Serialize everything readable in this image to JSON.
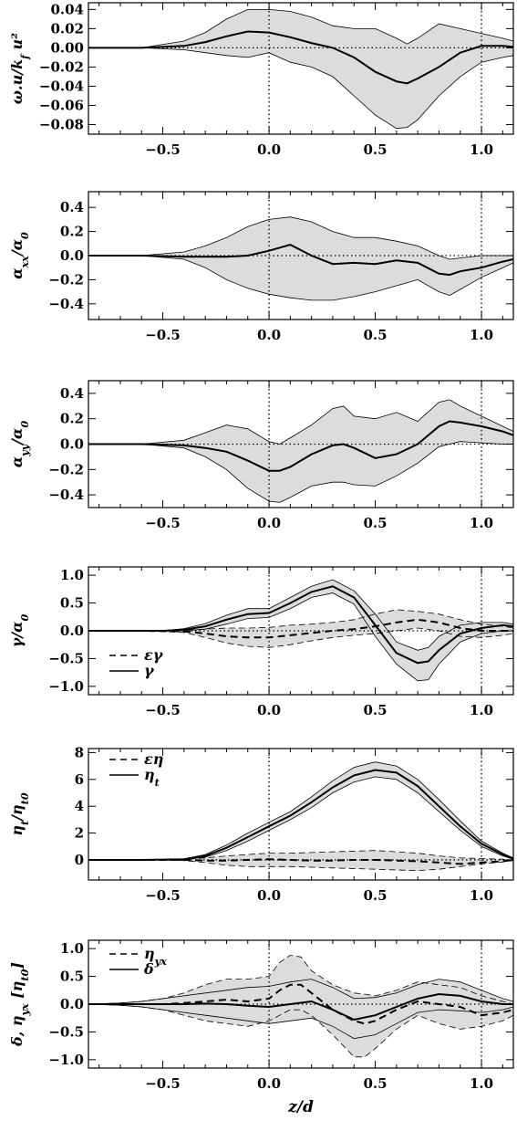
{
  "chart_data": [
    {
      "type": "area",
      "ylabel": "ω.u/k_f u²",
      "x_ticks": [
        -0.5,
        0.0,
        0.5,
        1.0
      ],
      "x_tick_labels": [
        "−0.5",
        "0.0",
        "0.5",
        "1.0"
      ],
      "y_ticks": [
        0.04,
        0.02,
        0.0,
        -0.02,
        -0.04,
        -0.06,
        -0.08
      ],
      "y_tick_labels": [
        "0.04",
        "0.02",
        "0.00",
        "−0.02",
        "−0.04",
        "−0.06",
        "−0.08"
      ],
      "xlim": [
        -0.85,
        1.15
      ],
      "ylim": [
        -0.09,
        0.047
      ],
      "vlines": [
        0.0,
        1.0
      ],
      "hline": 0,
      "legend": [],
      "series": [
        {
          "style": "solid",
          "x": [
            -0.85,
            -0.6,
            -0.4,
            -0.3,
            -0.2,
            -0.1,
            0.0,
            0.1,
            0.2,
            0.3,
            0.4,
            0.5,
            0.6,
            0.65,
            0.7,
            0.8,
            0.9,
            1.0,
            1.1,
            1.15
          ],
          "y": [
            0.0,
            0.0,
            0.002,
            0.006,
            0.012,
            0.017,
            0.016,
            0.011,
            0.005,
            0.0,
            -0.01,
            -0.025,
            -0.035,
            -0.037,
            -0.032,
            -0.02,
            -0.005,
            0.002,
            0.002,
            0.001
          ],
          "lo": [
            0.0,
            0.0,
            -0.002,
            -0.005,
            -0.008,
            -0.01,
            -0.005,
            -0.015,
            -0.02,
            -0.03,
            -0.05,
            -0.07,
            -0.084,
            -0.083,
            -0.075,
            -0.05,
            -0.03,
            -0.015,
            -0.01,
            -0.008
          ],
          "hi": [
            0.0,
            0.0,
            0.007,
            0.016,
            0.03,
            0.04,
            0.04,
            0.038,
            0.032,
            0.023,
            0.02,
            0.02,
            0.01,
            0.004,
            0.01,
            0.025,
            0.02,
            0.015,
            0.01,
            0.007
          ]
        }
      ]
    },
    {
      "type": "area",
      "ylabel": "α_xx/α_0",
      "x_ticks": [
        -0.5,
        0.0,
        0.5,
        1.0
      ],
      "x_tick_labels": [
        "−0.5",
        "0.0",
        "0.5",
        "1.0"
      ],
      "y_ticks": [
        0.4,
        0.2,
        0.0,
        -0.2,
        -0.4
      ],
      "y_tick_labels": [
        "0.4",
        "0.2",
        "0.0",
        "−0.2",
        "−0.4"
      ],
      "xlim": [
        -0.85,
        1.15
      ],
      "ylim": [
        -0.53,
        0.53
      ],
      "vlines": [
        0.0,
        1.0
      ],
      "hline": 0,
      "legend": [],
      "series": [
        {
          "style": "solid",
          "x": [
            -0.85,
            -0.6,
            -0.4,
            -0.3,
            -0.2,
            -0.1,
            0.0,
            0.1,
            0.2,
            0.3,
            0.4,
            0.5,
            0.6,
            0.7,
            0.8,
            0.85,
            0.9,
            1.0,
            1.1,
            1.15
          ],
          "y": [
            0.0,
            0.0,
            -0.01,
            -0.01,
            -0.01,
            0.0,
            0.04,
            0.09,
            0.0,
            -0.07,
            -0.06,
            -0.07,
            -0.04,
            -0.06,
            -0.15,
            -0.16,
            -0.13,
            -0.1,
            -0.05,
            -0.03
          ],
          "lo": [
            0.0,
            0.0,
            -0.03,
            -0.1,
            -0.2,
            -0.27,
            -0.32,
            -0.35,
            -0.37,
            -0.37,
            -0.34,
            -0.3,
            -0.25,
            -0.2,
            -0.3,
            -0.33,
            -0.28,
            -0.18,
            -0.1,
            -0.06
          ],
          "hi": [
            0.0,
            0.0,
            0.03,
            0.08,
            0.15,
            0.24,
            0.3,
            0.32,
            0.28,
            0.2,
            0.15,
            0.15,
            0.12,
            0.08,
            0.0,
            -0.03,
            -0.02,
            0.0,
            0.0,
            0.0
          ]
        }
      ]
    },
    {
      "type": "area",
      "ylabel": "α_yy/α_0",
      "x_ticks": [
        -0.5,
        0.0,
        0.5,
        1.0
      ],
      "x_tick_labels": [
        "−0.5",
        "0.0",
        "0.5",
        "1.0"
      ],
      "y_ticks": [
        0.4,
        0.2,
        0.0,
        -0.2,
        -0.4
      ],
      "y_tick_labels": [
        "0.4",
        "0.2",
        "0.0",
        "−0.2",
        "−0.4"
      ],
      "xlim": [
        -0.85,
        1.15
      ],
      "ylim": [
        -0.5,
        0.5
      ],
      "vlines": [
        0.0,
        1.0
      ],
      "hline": 0,
      "legend": [],
      "series": [
        {
          "style": "solid",
          "x": [
            -0.85,
            -0.6,
            -0.4,
            -0.3,
            -0.2,
            -0.1,
            0.0,
            0.05,
            0.1,
            0.2,
            0.3,
            0.35,
            0.4,
            0.5,
            0.6,
            0.7,
            0.8,
            0.85,
            0.9,
            1.0,
            1.1,
            1.15
          ],
          "y": [
            0.0,
            0.0,
            -0.01,
            -0.03,
            -0.06,
            -0.13,
            -0.21,
            -0.21,
            -0.18,
            -0.08,
            -0.01,
            0.0,
            -0.03,
            -0.11,
            -0.08,
            0.0,
            0.14,
            0.18,
            0.17,
            0.14,
            0.1,
            0.07
          ],
          "lo": [
            0.0,
            0.0,
            -0.03,
            -0.1,
            -0.2,
            -0.35,
            -0.45,
            -0.46,
            -0.42,
            -0.33,
            -0.3,
            -0.3,
            -0.32,
            -0.33,
            -0.25,
            -0.15,
            -0.02,
            0.0,
            0.02,
            0.01,
            0.0,
            0.0
          ],
          "hi": [
            0.0,
            0.0,
            0.03,
            0.09,
            0.15,
            0.12,
            0.02,
            0.0,
            0.05,
            0.15,
            0.28,
            0.3,
            0.22,
            0.2,
            0.25,
            0.18,
            0.33,
            0.35,
            0.3,
            0.22,
            0.14,
            0.1
          ]
        }
      ]
    },
    {
      "type": "area",
      "ylabel": "γ/α_0",
      "x_ticks": [
        -0.5,
        0.0,
        0.5,
        1.0
      ],
      "x_tick_labels": [
        "−0.5",
        "0.0",
        "0.5",
        "1.0"
      ],
      "y_ticks": [
        1.0,
        0.5,
        0.0,
        -0.5,
        -1.0
      ],
      "y_tick_labels": [
        "1.0",
        "0.5",
        "0.0",
        "−0.5",
        "−1.0"
      ],
      "xlim": [
        -0.85,
        1.15
      ],
      "ylim": [
        -1.15,
        1.15
      ],
      "vlines": [
        0.0,
        1.0
      ],
      "hline": 0,
      "legend": [
        {
          "style": "dashed",
          "label": "ε_γ"
        },
        {
          "style": "solid",
          "label": "γ"
        }
      ],
      "series": [
        {
          "style": "solid",
          "x": [
            -0.85,
            -0.6,
            -0.5,
            -0.4,
            -0.3,
            -0.2,
            -0.1,
            0.0,
            0.1,
            0.2,
            0.3,
            0.4,
            0.5,
            0.6,
            0.7,
            0.75,
            0.8,
            0.9,
            1.0,
            1.1,
            1.15
          ],
          "y": [
            0.0,
            0.0,
            0.0,
            0.02,
            0.08,
            0.2,
            0.3,
            0.32,
            0.5,
            0.7,
            0.8,
            0.6,
            0.1,
            -0.4,
            -0.58,
            -0.55,
            -0.35,
            -0.05,
            0.05,
            0.1,
            0.08
          ],
          "lo": [
            0.0,
            0.0,
            0.0,
            0.0,
            0.03,
            0.12,
            0.22,
            0.24,
            0.4,
            0.6,
            0.68,
            0.48,
            -0.1,
            -0.6,
            -0.9,
            -0.88,
            -0.6,
            -0.2,
            -0.05,
            0.0,
            0.0
          ],
          "hi": [
            0.0,
            0.0,
            0.0,
            0.04,
            0.13,
            0.28,
            0.4,
            0.4,
            0.6,
            0.8,
            0.92,
            0.72,
            0.3,
            -0.2,
            -0.35,
            -0.3,
            -0.1,
            0.1,
            0.15,
            0.15,
            0.12
          ]
        },
        {
          "style": "dashed",
          "x": [
            -0.85,
            -0.6,
            -0.4,
            -0.3,
            -0.2,
            -0.1,
            0.0,
            0.1,
            0.2,
            0.3,
            0.4,
            0.5,
            0.6,
            0.7,
            0.8,
            0.9,
            1.0,
            1.1,
            1.15
          ],
          "y": [
            0.0,
            0.0,
            -0.01,
            -0.05,
            -0.1,
            -0.12,
            -0.12,
            -0.08,
            -0.04,
            0.0,
            0.03,
            0.08,
            0.15,
            0.2,
            0.15,
            0.05,
            0.0,
            0.0,
            0.0
          ],
          "lo": [
            0.0,
            0.0,
            -0.03,
            -0.12,
            -0.22,
            -0.28,
            -0.3,
            -0.25,
            -0.18,
            -0.12,
            -0.08,
            -0.05,
            0.0,
            0.05,
            0.0,
            -0.1,
            -0.12,
            -0.08,
            -0.05
          ],
          "hi": [
            0.0,
            0.0,
            0.01,
            0.03,
            0.05,
            0.05,
            0.06,
            0.1,
            0.12,
            0.15,
            0.2,
            0.3,
            0.38,
            0.35,
            0.3,
            0.2,
            0.12,
            0.08,
            0.05
          ]
        }
      ]
    },
    {
      "type": "area",
      "ylabel": "η_t/η_t0",
      "x_ticks": [
        -0.5,
        0.0,
        0.5,
        1.0
      ],
      "x_tick_labels": [
        "−0.5",
        "0.0",
        "0.5",
        "1.0"
      ],
      "y_ticks": [
        8,
        6,
        4,
        2,
        0
      ],
      "y_tick_labels": [
        "8",
        "6",
        "4",
        "2",
        "0"
      ],
      "xlim": [
        -0.85,
        1.15
      ],
      "ylim": [
        -1.5,
        8.3
      ],
      "vlines": [
        0.0,
        1.0
      ],
      "hline": 0,
      "legend": [
        {
          "style": "dashed",
          "label": "ε_η"
        },
        {
          "style": "solid",
          "label": "η_t"
        }
      ],
      "series": [
        {
          "style": "solid",
          "x": [
            -0.85,
            -0.6,
            -0.4,
            -0.3,
            -0.2,
            -0.1,
            0.0,
            0.1,
            0.2,
            0.3,
            0.4,
            0.5,
            0.6,
            0.7,
            0.8,
            0.9,
            1.0,
            1.1,
            1.15
          ],
          "y": [
            0.0,
            0.0,
            0.05,
            0.3,
            0.9,
            1.7,
            2.5,
            3.3,
            4.3,
            5.4,
            6.3,
            6.7,
            6.5,
            5.5,
            4.0,
            2.5,
            1.2,
            0.4,
            0.1
          ],
          "lo": [
            0.0,
            0.0,
            0.03,
            0.2,
            0.7,
            1.4,
            2.2,
            3.0,
            3.9,
            5.0,
            5.8,
            6.2,
            6.0,
            5.0,
            3.6,
            2.2,
            1.0,
            0.3,
            0.05
          ],
          "hi": [
            0.0,
            0.0,
            0.08,
            0.4,
            1.1,
            2.0,
            2.8,
            3.6,
            4.7,
            5.9,
            6.9,
            7.3,
            7.0,
            6.0,
            4.5,
            2.9,
            1.4,
            0.5,
            0.15
          ]
        },
        {
          "style": "dashed",
          "x": [
            -0.85,
            -0.6,
            -0.4,
            -0.3,
            -0.2,
            -0.1,
            0.0,
            0.1,
            0.2,
            0.3,
            0.4,
            0.5,
            0.6,
            0.7,
            0.8,
            0.9,
            1.0,
            1.1,
            1.15
          ],
          "y": [
            0.0,
            0.0,
            0.0,
            -0.05,
            -0.05,
            0.0,
            0.05,
            0.0,
            -0.05,
            -0.05,
            0.0,
            0.0,
            -0.05,
            -0.1,
            -0.2,
            -0.3,
            -0.2,
            -0.1,
            0.0
          ],
          "lo": [
            0.0,
            0.0,
            -0.05,
            -0.2,
            -0.4,
            -0.5,
            -0.5,
            -0.5,
            -0.55,
            -0.6,
            -0.65,
            -0.7,
            -0.75,
            -0.8,
            -0.7,
            -0.5,
            -0.3,
            -0.15,
            -0.05
          ],
          "hi": [
            0.0,
            0.0,
            0.05,
            0.15,
            0.3,
            0.4,
            0.5,
            0.5,
            0.55,
            0.6,
            0.65,
            0.7,
            0.6,
            0.5,
            0.3,
            0.15,
            0.1,
            0.05,
            0.0
          ]
        }
      ]
    },
    {
      "type": "area",
      "ylabel": "δ, η_yx [η_t0]",
      "xlabel": "z/d",
      "x_ticks": [
        -0.5,
        0.0,
        0.5,
        1.0
      ],
      "x_tick_labels": [
        "−0.5",
        "0.0",
        "0.5",
        "1.0"
      ],
      "y_ticks": [
        1.0,
        0.5,
        0.0,
        -0.5,
        -1.0
      ],
      "y_tick_labels": [
        "1.0",
        "0.5",
        "0.0",
        "−0.5",
        "−1.0"
      ],
      "xlim": [
        -0.85,
        1.15
      ],
      "ylim": [
        -1.15,
        1.15
      ],
      "vlines": [
        0.0,
        1.0
      ],
      "hline": 0,
      "legend": [
        {
          "style": "dashed",
          "label": "η_yx"
        },
        {
          "style": "solid",
          "label": "δ"
        }
      ],
      "series": [
        {
          "style": "dashed",
          "x": [
            -0.85,
            -0.7,
            -0.6,
            -0.5,
            -0.4,
            -0.3,
            -0.2,
            -0.1,
            0.0,
            0.05,
            0.1,
            0.15,
            0.2,
            0.3,
            0.4,
            0.45,
            0.5,
            0.6,
            0.7,
            0.8,
            0.9,
            1.0,
            1.1,
            1.15
          ],
          "y": [
            0.0,
            0.0,
            0.0,
            0.0,
            0.02,
            0.05,
            0.08,
            0.05,
            0.1,
            0.25,
            0.35,
            0.35,
            0.2,
            -0.1,
            -0.3,
            -0.35,
            -0.3,
            -0.1,
            0.05,
            0.0,
            -0.05,
            -0.2,
            -0.15,
            -0.1
          ],
          "lo": [
            0.0,
            -0.02,
            -0.05,
            -0.1,
            -0.2,
            -0.3,
            -0.35,
            -0.4,
            -0.3,
            -0.2,
            -0.1,
            -0.1,
            -0.2,
            -0.55,
            -0.95,
            -0.95,
            -0.8,
            -0.45,
            -0.2,
            -0.35,
            -0.45,
            -0.4,
            -0.3,
            -0.2
          ],
          "hi": [
            0.0,
            0.02,
            0.05,
            0.1,
            0.2,
            0.35,
            0.45,
            0.45,
            0.5,
            0.75,
            0.88,
            0.85,
            0.6,
            0.35,
            0.2,
            0.18,
            0.15,
            0.25,
            0.4,
            0.35,
            0.3,
            0.15,
            0.05,
            0.0
          ]
        },
        {
          "style": "solid",
          "x": [
            -0.85,
            -0.7,
            -0.6,
            -0.5,
            -0.4,
            -0.3,
            -0.2,
            -0.1,
            0.0,
            0.1,
            0.2,
            0.3,
            0.4,
            0.5,
            0.6,
            0.7,
            0.8,
            0.9,
            1.0,
            1.1,
            1.15
          ],
          "y": [
            0.0,
            0.0,
            0.0,
            0.0,
            0.0,
            0.01,
            0.0,
            -0.03,
            -0.05,
            0.0,
            0.05,
            -0.1,
            -0.28,
            -0.2,
            -0.05,
            0.1,
            0.18,
            0.15,
            0.05,
            0.0,
            0.0
          ],
          "lo": [
            0.0,
            -0.02,
            -0.05,
            -0.1,
            -0.15,
            -0.2,
            -0.25,
            -0.3,
            -0.35,
            -0.3,
            -0.25,
            -0.4,
            -0.62,
            -0.55,
            -0.35,
            -0.15,
            -0.1,
            -0.12,
            -0.15,
            -0.1,
            -0.05
          ],
          "hi": [
            0.0,
            0.02,
            0.05,
            0.1,
            0.15,
            0.2,
            0.25,
            0.3,
            0.32,
            0.4,
            0.45,
            0.3,
            0.1,
            0.12,
            0.2,
            0.35,
            0.45,
            0.4,
            0.25,
            0.1,
            0.05
          ]
        }
      ]
    }
  ]
}
